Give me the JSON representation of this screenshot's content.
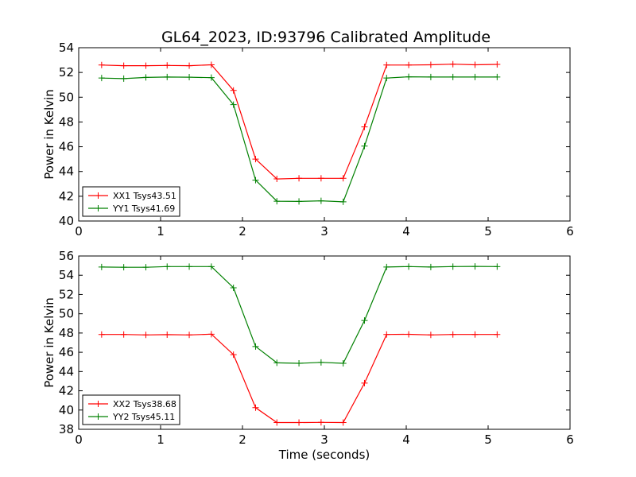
{
  "figure": {
    "title": "GL64_2023, ID:93796 Calibrated Amplitude",
    "background": "#ffffff"
  },
  "chart_data": [
    {
      "type": "line",
      "title": "GL64_2023, ID:93796 Calibrated Amplitude",
      "xlabel": "",
      "ylabel": "Power in Kelvin",
      "xlim": [
        0,
        6
      ],
      "ylim": [
        40,
        54
      ],
      "xticks": [
        "0",
        "1",
        "2",
        "3",
        "4",
        "5",
        "6"
      ],
      "yticks": [
        "40",
        "42",
        "44",
        "46",
        "48",
        "50",
        "52",
        "54"
      ],
      "grid": false,
      "legend_position": "lower-left",
      "x": [
        0.28,
        0.55,
        0.82,
        1.08,
        1.35,
        1.62,
        1.89,
        2.16,
        2.42,
        2.69,
        2.96,
        3.23,
        3.49,
        3.76,
        4.03,
        4.3,
        4.57,
        4.84,
        5.11
      ],
      "series": [
        {
          "name": "XX1 Tsys43.51",
          "color": "#ff0000",
          "values": [
            52.6,
            52.55,
            52.55,
            52.57,
            52.55,
            52.62,
            50.55,
            45.0,
            43.4,
            43.45,
            43.45,
            43.45,
            47.6,
            52.6,
            52.6,
            52.62,
            52.67,
            52.62,
            52.65
          ]
        },
        {
          "name": "YY1 Tsys41.69",
          "color": "#008000",
          "values": [
            51.55,
            51.5,
            51.6,
            51.63,
            51.62,
            51.58,
            49.4,
            43.3,
            41.6,
            41.58,
            41.63,
            41.55,
            46.05,
            51.55,
            51.65,
            51.63,
            51.63,
            51.63,
            51.63
          ]
        }
      ]
    },
    {
      "type": "line",
      "title": "",
      "xlabel": "Time (seconds)",
      "ylabel": "Power in Kelvin",
      "xlim": [
        0,
        6
      ],
      "ylim": [
        38,
        56
      ],
      "xticks": [
        "0",
        "1",
        "2",
        "3",
        "4",
        "5",
        "6"
      ],
      "yticks": [
        "38",
        "40",
        "42",
        "44",
        "46",
        "48",
        "50",
        "52",
        "54",
        "56"
      ],
      "grid": false,
      "legend_position": "lower-left",
      "x": [
        0.28,
        0.55,
        0.82,
        1.08,
        1.35,
        1.62,
        1.89,
        2.16,
        2.42,
        2.69,
        2.96,
        3.23,
        3.49,
        3.76,
        4.03,
        4.3,
        4.57,
        4.84,
        5.11
      ],
      "series": [
        {
          "name": "XX2 Tsys38.68",
          "color": "#ff0000",
          "values": [
            47.85,
            47.85,
            47.8,
            47.83,
            47.8,
            47.88,
            45.75,
            40.25,
            38.7,
            38.7,
            38.72,
            38.7,
            42.8,
            47.85,
            47.87,
            47.8,
            47.85,
            47.85,
            47.85
          ]
        },
        {
          "name": "YY2 Tsys45.11",
          "color": "#008000",
          "values": [
            54.85,
            54.83,
            54.83,
            54.9,
            54.9,
            54.9,
            52.7,
            46.6,
            44.9,
            44.85,
            44.95,
            44.85,
            49.3,
            54.85,
            54.9,
            54.85,
            54.9,
            54.92,
            54.9
          ]
        }
      ]
    }
  ]
}
